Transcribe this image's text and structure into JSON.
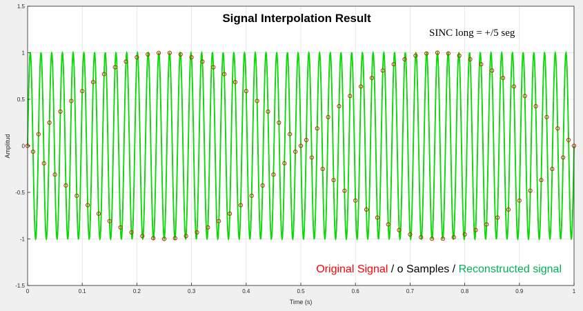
{
  "chart_data": {
    "type": "line",
    "title": "Signal Interpolation Result",
    "xlabel": "Time (s)",
    "ylabel": "Amplitud",
    "xlim": [
      0,
      1
    ],
    "ylim": [
      -1.5,
      1.5
    ],
    "grid": true,
    "x_ticks": [
      "0",
      "0.1",
      "0.2",
      "0.3",
      "0.4",
      "0.5",
      "0.6",
      "0.7",
      "0.8",
      "0.9",
      "1"
    ],
    "y_ticks": [
      "1.5",
      "1",
      "0.5",
      "0",
      "-0.5",
      "-1",
      "-1.5"
    ],
    "annotation": "SINC long = +/5 seg",
    "legend": {
      "placement": "bottom-right",
      "parts": [
        {
          "text": "Original Signal",
          "color": "#ff0000"
        },
        {
          "text": " / ",
          "color": "#000000"
        },
        {
          "text": "o Samples",
          "color": "#000000"
        },
        {
          "text": " / ",
          "color": "#000000"
        },
        {
          "text": "Reconstructed signal",
          "color": "#00b050"
        }
      ]
    },
    "series": [
      {
        "name": "Original Signal",
        "kind": "line",
        "color": "#ff0000",
        "frequency_hz": 51,
        "amplitude": 1
      },
      {
        "name": "Samples",
        "kind": "markers",
        "color": "#cc2200",
        "sample_interval_s": 0.01,
        "frequency_hz": 51,
        "amplitude": 1
      },
      {
        "name": "Reconstructed signal",
        "kind": "line",
        "color": "#00dd00",
        "frequency_hz": 51,
        "amplitude": 1
      }
    ]
  }
}
